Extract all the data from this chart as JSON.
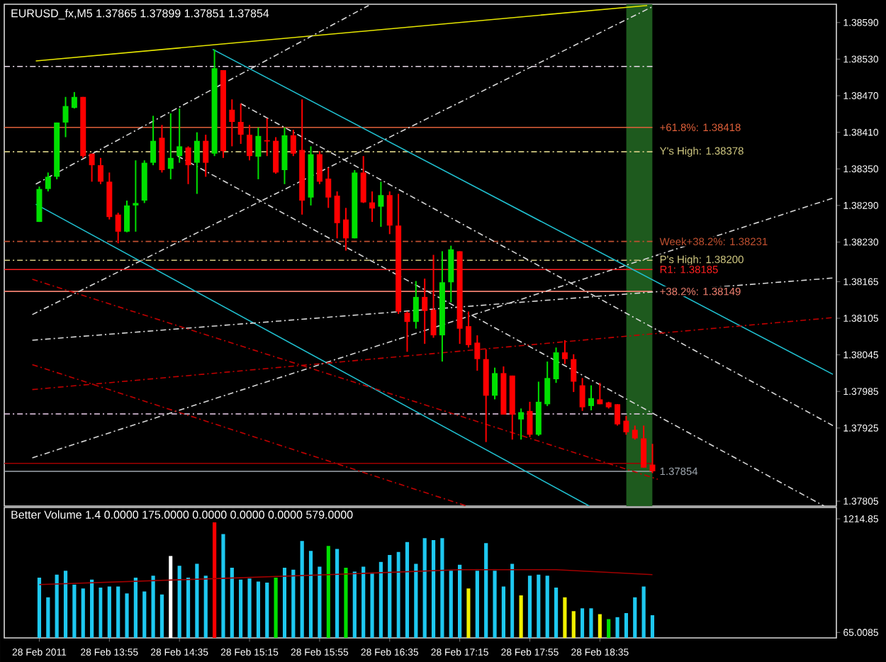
{
  "chart_data": [
    {
      "type": "candlestick",
      "title": "EURUSD_fx,M5  1.37865 1.37899 1.37851 1.37854",
      "x": [
        "2011-02-28T13:15",
        "2011-02-28T13:20",
        "2011-02-28T13:25",
        "2011-02-28T13:30",
        "2011-02-28T13:35",
        "2011-02-28T13:40",
        "2011-02-28T13:45",
        "2011-02-28T13:50",
        "2011-02-28T13:55",
        "2011-02-28T14:00",
        "2011-02-28T14:05",
        "2011-02-28T14:10",
        "2011-02-28T14:15",
        "2011-02-28T14:20",
        "2011-02-28T14:25",
        "2011-02-28T14:30",
        "2011-02-28T14:35",
        "2011-02-28T14:40",
        "2011-02-28T14:45",
        "2011-02-28T14:50",
        "2011-02-28T14:55",
        "2011-02-28T15:00",
        "2011-02-28T15:05",
        "2011-02-28T15:10",
        "2011-02-28T15:15",
        "2011-02-28T15:20",
        "2011-02-28T15:25",
        "2011-02-28T15:30",
        "2011-02-28T15:35",
        "2011-02-28T15:40",
        "2011-02-28T15:45",
        "2011-02-28T15:50",
        "2011-02-28T15:55",
        "2011-02-28T16:00",
        "2011-02-28T16:05",
        "2011-02-28T16:10",
        "2011-02-28T16:15",
        "2011-02-28T16:20",
        "2011-02-28T16:25",
        "2011-02-28T16:30",
        "2011-02-28T16:35",
        "2011-02-28T16:40",
        "2011-02-28T16:45",
        "2011-02-28T16:50",
        "2011-02-28T16:55",
        "2011-02-28T17:00",
        "2011-02-28T17:05",
        "2011-02-28T17:10",
        "2011-02-28T17:15",
        "2011-02-28T17:20",
        "2011-02-28T17:25",
        "2011-02-28T17:30",
        "2011-02-28T17:35",
        "2011-02-28T17:40",
        "2011-02-28T17:45",
        "2011-02-28T17:50",
        "2011-02-28T17:55",
        "2011-02-28T18:00",
        "2011-02-28T18:05",
        "2011-02-28T18:10",
        "2011-02-28T18:15",
        "2011-02-28T18:20",
        "2011-02-28T18:25",
        "2011-02-28T18:30",
        "2011-02-28T18:35",
        "2011-02-28T18:40",
        "2011-02-28T18:45",
        "2011-02-28T18:50",
        "2011-02-28T18:55",
        "2011-02-28T19:00",
        "2011-02-28T19:05"
      ],
      "ohlc": [
        [
          1.38263,
          1.38321,
          1.38263,
          1.38317
        ],
        [
          1.38317,
          1.38344,
          1.38313,
          1.38337
        ],
        [
          1.38337,
          1.38426,
          1.38333,
          1.38426
        ],
        [
          1.38426,
          1.38468,
          1.38402,
          1.38453
        ],
        [
          1.3845,
          1.38476,
          1.38449,
          1.38468
        ],
        [
          1.38468,
          1.38468,
          1.38368,
          1.38371
        ],
        [
          1.38375,
          1.38375,
          1.38329,
          1.38356
        ],
        [
          1.38356,
          1.38368,
          1.38325,
          1.38329
        ],
        [
          1.38329,
          1.38344,
          1.38267,
          1.38271
        ],
        [
          1.38275,
          1.38278,
          1.38228,
          1.38247
        ],
        [
          1.38247,
          1.38298,
          1.38246,
          1.3829
        ],
        [
          1.3829,
          1.38364,
          1.38247,
          1.38294
        ],
        [
          1.38298,
          1.38364,
          1.38294,
          1.3836
        ],
        [
          1.3836,
          1.38437,
          1.38356,
          1.38396
        ],
        [
          1.38401,
          1.38422,
          1.38344,
          1.38348
        ],
        [
          1.3835,
          1.38441,
          1.38333,
          1.38368
        ],
        [
          1.38371,
          1.38449,
          1.3836,
          1.38387
        ],
        [
          1.38385,
          1.38387,
          1.38325,
          1.38356
        ],
        [
          1.3836,
          1.3841,
          1.38309,
          1.38396
        ],
        [
          1.38396,
          1.38406,
          1.38337,
          1.3836
        ],
        [
          1.38375,
          1.38546,
          1.38371,
          1.38515
        ],
        [
          1.38512,
          1.38512,
          1.38368,
          1.38379
        ],
        [
          1.38447,
          1.38464,
          1.38387,
          1.38427
        ],
        [
          1.38427,
          1.38457,
          1.38391,
          1.38406
        ],
        [
          1.38406,
          1.38422,
          1.38364,
          1.38371
        ],
        [
          1.3837,
          1.38418,
          1.38333,
          1.38404
        ],
        [
          1.38397,
          1.38433,
          1.38371,
          1.38395
        ],
        [
          1.38396,
          1.38402,
          1.38342,
          1.38344
        ],
        [
          1.38348,
          1.38418,
          1.38325,
          1.38405
        ],
        [
          1.38405,
          1.38414,
          1.38371,
          1.38375
        ],
        [
          1.38381,
          1.38464,
          1.38275,
          1.38298
        ],
        [
          1.38303,
          1.38387,
          1.3829,
          1.38374
        ],
        [
          1.38374,
          1.38379,
          1.38325,
          1.38329
        ],
        [
          1.38334,
          1.38352,
          1.38286,
          1.38303
        ],
        [
          1.38306,
          1.38313,
          1.38236,
          1.38261
        ],
        [
          1.38267,
          1.38286,
          1.38216,
          1.38236
        ],
        [
          1.38236,
          1.38348,
          1.38236,
          1.38344
        ],
        [
          1.38344,
          1.38371,
          1.38294,
          1.38295
        ],
        [
          1.38295,
          1.38313,
          1.38263,
          1.38285
        ],
        [
          1.38288,
          1.38329,
          1.38255,
          1.38307
        ],
        [
          1.38307,
          1.38313,
          1.38243,
          1.38257
        ],
        [
          1.38257,
          1.38309,
          1.38112,
          1.38116
        ],
        [
          1.38114,
          1.38116,
          1.3805,
          1.38099
        ],
        [
          1.38099,
          1.38166,
          1.38088,
          1.3814
        ],
        [
          1.3814,
          1.3817,
          1.38063,
          1.38117
        ],
        [
          1.38119,
          1.38209,
          1.38073,
          1.38077
        ],
        [
          1.38077,
          1.38215,
          1.38034,
          1.38164
        ],
        [
          1.38164,
          1.38224,
          1.38131,
          1.38218
        ],
        [
          1.38215,
          1.38215,
          1.38063,
          1.38088
        ],
        [
          1.38092,
          1.38116,
          1.38057,
          1.38061
        ],
        [
          1.38065,
          1.38077,
          1.38019,
          1.38038
        ],
        [
          1.38038,
          1.38054,
          1.37902,
          1.37978
        ],
        [
          1.37978,
          1.38024,
          1.37972,
          1.38015
        ],
        [
          1.38015,
          1.38026,
          1.37947,
          1.37947
        ],
        [
          1.38011,
          1.38011,
          1.37906,
          1.37947
        ],
        [
          1.37939,
          1.37957,
          1.37906,
          1.37951
        ],
        [
          1.37953,
          1.37968,
          1.3791,
          1.37914
        ],
        [
          1.37914,
          1.38001,
          1.37912,
          1.37968
        ],
        [
          1.37964,
          1.38034,
          1.37961,
          1.38007
        ],
        [
          1.38005,
          1.38057,
          1.37999,
          1.38049
        ],
        [
          1.38049,
          1.38069,
          1.3803,
          1.38038
        ],
        [
          1.38038,
          1.38046,
          1.37984,
          1.38001
        ],
        [
          1.37995,
          1.38007,
          1.37953,
          1.37959
        ],
        [
          1.37961,
          1.37995,
          1.37954,
          1.37974
        ],
        [
          1.37972,
          1.37999,
          1.37964,
          1.37964
        ],
        [
          1.37967,
          1.37968,
          1.37957,
          1.37959
        ],
        [
          1.37964,
          1.37964,
          1.37929,
          1.37931
        ],
        [
          1.37937,
          1.37945,
          1.37914,
          1.37918
        ],
        [
          1.37922,
          1.37929,
          1.37906,
          1.37908
        ],
        [
          1.37908,
          1.37929,
          1.3786,
          1.3786
        ],
        [
          1.37865,
          1.37899,
          1.37851,
          1.37854
        ]
      ],
      "xlim": [
        "2011-02-28T12:55",
        "2011-02-28T20:50"
      ],
      "ylim": [
        1.37797,
        1.3862
      ],
      "yticks": [
        {
          "value": 1.3859,
          "label": "1.38590"
        },
        {
          "value": 1.3853,
          "label": "1.38530"
        },
        {
          "value": 1.3847,
          "label": "1.38470"
        },
        {
          "value": 1.3841,
          "label": "1.38410"
        },
        {
          "value": 1.3835,
          "label": "1.38350"
        },
        {
          "value": 1.3829,
          "label": "1.38290"
        },
        {
          "value": 1.3823,
          "label": "1.38230"
        },
        1.38165,
        1.38105,
        1.38045,
        1.37985,
        1.37925,
        1.37805
      ],
      "tick_labels": "y",
      "bands": [
        {
          "axis": "x",
          "from": "2011-02-28T18:50",
          "to": "2011-02-28T19:05",
          "color": "#1e5a1e"
        }
      ],
      "ref_lines": [
        {
          "axis": "y",
          "value": 1.38518,
          "color": "#e8d8e8",
          "line_style": "dashed"
        },
        {
          "axis": "y",
          "value": 1.38418,
          "label": "+61.8%: 1.38418",
          "color": "#e0603a"
        },
        {
          "axis": "y",
          "value": 1.38378,
          "label": "Y's High: 1.38378",
          "color": "#d0c880",
          "line_style": "dashed"
        },
        {
          "axis": "y",
          "value": 1.38231,
          "label": "Week+38.2%: 1.38231",
          "color": "#c05030",
          "line_style": "dashed"
        },
        {
          "axis": "y",
          "value": 1.382,
          "label": "P's High: 1.38200",
          "color": "#d0c880",
          "line_style": "dashed"
        },
        {
          "axis": "y",
          "value": 1.38185,
          "label": "R1: 1.38185",
          "color": "#ff2020"
        },
        {
          "axis": "y",
          "value": 1.38149,
          "label": "+38.2%: 1.38149",
          "color": "#f08070"
        },
        {
          "axis": "y",
          "value": 1.37948,
          "color": "#f0d0f0",
          "line_style": "dashed"
        },
        {
          "axis": "y",
          "value": 1.37867,
          "color": "#a00000"
        },
        {
          "axis": "y",
          "value": 1.37854,
          "label": "1.37854",
          "color": "#a0a8b0"
        }
      ],
      "series": [
        {
          "type": "line",
          "x": [
            "2011-02-28T13:13",
            "2011-02-28T19:02"
          ],
          "values": [
            1.38527,
            1.38618
          ],
          "color": "#e6e600",
          "line_style": "solid"
        },
        {
          "type": "line",
          "x": [
            "2011-02-28T14:54",
            "2011-02-28T20:48"
          ],
          "values": [
            1.38546,
            1.38013
          ],
          "color": "#20c0d0",
          "line_style": "solid"
        },
        {
          "type": "line",
          "x": [
            "2011-02-28T13:13",
            "2011-02-28T18:29"
          ],
          "values": [
            1.38292,
            1.37797
          ],
          "color": "#20c0d0",
          "line_style": "solid"
        },
        {
          "type": "line",
          "x": [
            "2011-02-28T13:13",
            "2011-02-28T16:23"
          ],
          "values": [
            1.38325,
            1.38618
          ],
          "color": "#d8d8d8",
          "line_style": "dashed"
        },
        {
          "type": "line",
          "x": [
            "2011-02-28T13:11",
            "2011-02-28T19:05"
          ],
          "values": [
            1.38111,
            1.38616
          ],
          "color": "#d8d8d8",
          "line_style": "dashed"
        },
        {
          "type": "line",
          "x": [
            "2011-02-28T13:11",
            "2011-02-28T20:48"
          ],
          "values": [
            1.37876,
            1.38302
          ],
          "color": "#d8d8d8",
          "line_style": "dashed"
        },
        {
          "type": "line",
          "x": [
            "2011-02-28T13:11",
            "2011-02-28T20:48"
          ],
          "values": [
            1.38069,
            1.38171
          ],
          "color": "#d8d8d8",
          "line_style": "dashed"
        },
        {
          "type": "line",
          "x": [
            "2011-02-28T14:34",
            "2011-02-28T20:43"
          ],
          "values": [
            1.38371,
            1.37797
          ],
          "color": "#d8d8d8",
          "line_style": "dashed"
        },
        {
          "type": "line",
          "x": [
            "2011-02-28T15:10",
            "2011-02-28T20:48"
          ],
          "values": [
            1.38457,
            1.37929
          ],
          "color": "#d8d8d8",
          "line_style": "dashed"
        },
        {
          "type": "line",
          "x": [
            "2011-02-28T13:11",
            "2011-02-28T19:08"
          ],
          "values": [
            1.38169,
            1.37841
          ],
          "color": "#c00000",
          "line_style": "dashed"
        },
        {
          "type": "line",
          "x": [
            "2011-02-28T13:11",
            "2011-02-28T17:19"
          ],
          "values": [
            1.38029,
            1.37797
          ],
          "color": "#c00000",
          "line_style": "dashed"
        },
        {
          "type": "line",
          "x": [
            "2011-02-28T13:11",
            "2011-02-28T20:48"
          ],
          "values": [
            1.37988,
            1.38106
          ],
          "color": "#c00000",
          "line_style": "dashed"
        }
      ]
    },
    {
      "type": "bar",
      "title": "Better Volume 1.4 0.0000 175.0000 0.0000 0.0000 0.0000 579.0000",
      "x": [
        "2011-02-28T13:15",
        "2011-02-28T13:20",
        "2011-02-28T13:25",
        "2011-02-28T13:30",
        "2011-02-28T13:35",
        "2011-02-28T13:40",
        "2011-02-28T13:45",
        "2011-02-28T13:50",
        "2011-02-28T13:55",
        "2011-02-28T14:00",
        "2011-02-28T14:05",
        "2011-02-28T14:10",
        "2011-02-28T14:15",
        "2011-02-28T14:20",
        "2011-02-28T14:25",
        "2011-02-28T14:30",
        "2011-02-28T14:35",
        "2011-02-28T14:40",
        "2011-02-28T14:45",
        "2011-02-28T14:50",
        "2011-02-28T14:55",
        "2011-02-28T15:00",
        "2011-02-28T15:05",
        "2011-02-28T15:10",
        "2011-02-28T15:15",
        "2011-02-28T15:20",
        "2011-02-28T15:25",
        "2011-02-28T15:30",
        "2011-02-28T15:35",
        "2011-02-28T15:40",
        "2011-02-28T15:45",
        "2011-02-28T15:50",
        "2011-02-28T15:55",
        "2011-02-28T16:00",
        "2011-02-28T16:05",
        "2011-02-28T16:10",
        "2011-02-28T16:15",
        "2011-02-28T16:20",
        "2011-02-28T16:25",
        "2011-02-28T16:30",
        "2011-02-28T16:35",
        "2011-02-28T16:40",
        "2011-02-28T16:45",
        "2011-02-28T16:50",
        "2011-02-28T16:55",
        "2011-02-28T17:00",
        "2011-02-28T17:05",
        "2011-02-28T17:10",
        "2011-02-28T17:15",
        "2011-02-28T17:20",
        "2011-02-28T17:25",
        "2011-02-28T17:30",
        "2011-02-28T17:35",
        "2011-02-28T17:40",
        "2011-02-28T17:45",
        "2011-02-28T17:50",
        "2011-02-28T17:55",
        "2011-02-28T18:00",
        "2011-02-28T18:05",
        "2011-02-28T18:10",
        "2011-02-28T18:15",
        "2011-02-28T18:20",
        "2011-02-28T18:25",
        "2011-02-28T18:30",
        "2011-02-28T18:35",
        "2011-02-28T18:40",
        "2011-02-28T18:45",
        "2011-02-28T18:50",
        "2011-02-28T18:55",
        "2011-02-28T19:00",
        "2011-02-28T19:05"
      ],
      "xlim": [
        "2011-02-28T12:55",
        "2011-02-28T20:50"
      ],
      "ylim": [
        10,
        1330
      ],
      "yticks": [
        1214.85,
        65.0085
      ],
      "xticks": [
        {
          "value": "2011-02-28T13:15",
          "label": "28 Feb 2011"
        },
        {
          "value": "2011-02-28T13:55",
          "label": "28 Feb 13:55"
        },
        {
          "value": "2011-02-28T14:35",
          "label": "28 Feb 14:35"
        },
        {
          "value": "2011-02-28T15:15",
          "label": "28 Feb 15:15"
        },
        {
          "value": "2011-02-28T15:55",
          "label": "28 Feb 15:55"
        },
        {
          "value": "2011-02-28T16:35",
          "label": "28 Feb 16:35"
        },
        {
          "value": "2011-02-28T17:15",
          "label": "28 Feb 17:15"
        },
        {
          "value": "2011-02-28T17:55",
          "label": "28 Feb 17:55"
        },
        {
          "value": "2011-02-28T18:35",
          "label": "28 Feb 18:35"
        }
      ],
      "series": [
        {
          "type": "bar",
          "values": [
            620,
            420,
            650,
            690,
            550,
            510,
            600,
            520,
            530,
            530,
            460,
            620,
            480,
            640,
            450,
            840,
            740,
            620,
            760,
            640,
            1180,
            1060,
            720,
            600,
            610,
            580,
            570,
            620,
            720,
            700,
            990,
            890,
            730,
            940,
            910,
            720,
            680,
            730,
            660,
            780,
            850,
            880,
            980,
            760,
            1020,
            1000,
            1020,
            690,
            750,
            510,
            690,
            970,
            690,
            530,
            760,
            440,
            640,
            650,
            640,
            520,
            420,
            280,
            310,
            310,
            250,
            200,
            220,
            260,
            420,
            530,
            240
          ],
          "colors": [
            "#1ec8f0",
            "#1ec8f0",
            "#1ec8f0",
            "#1ec8f0",
            "#1ec8f0",
            "#1ec8f0",
            "#1ec8f0",
            "#1ec8f0",
            "#1ec8f0",
            "#1ec8f0",
            "#1ec8f0",
            "#1ec8f0",
            "#1ec8f0",
            "#1ec8f0",
            "#1ec8f0",
            "#ffffff",
            "#1ec8f0",
            "#1ec8f0",
            "#1ec8f0",
            "#1ec8f0",
            "#ff0000",
            "#1ec8f0",
            "#1ec8f0",
            "#1ec8f0",
            "#1ec8f0",
            "#1ec8f0",
            "#1ec8f0",
            "#00e000",
            "#1ec8f0",
            "#1ec8f0",
            "#1ec8f0",
            "#1ec8f0",
            "#1ec8f0",
            "#00e000",
            "#1ec8f0",
            "#00e000",
            "#1ec8f0",
            "#1ec8f0",
            "#1ec8f0",
            "#1ec8f0",
            "#1ec8f0",
            "#1ec8f0",
            "#1ec8f0",
            "#1ec8f0",
            "#1ec8f0",
            "#1ec8f0",
            "#1ec8f0",
            "#1ec8f0",
            "#1ec8f0",
            "#f0f000",
            "#1ec8f0",
            "#1ec8f0",
            "#1ec8f0",
            "#1ec8f0",
            "#1ec8f0",
            "#f0f000",
            "#1ec8f0",
            "#1ec8f0",
            "#1ec8f0",
            "#1ec8f0",
            "#f0f000",
            "#f0f000",
            "#1ec8f0",
            "#1ec8f0",
            "#f0f000",
            "#00e000",
            "#1ec8f0",
            "#1ec8f0",
            "#1ec8f0",
            "#1ec8f0",
            "#1ec8f0"
          ]
        },
        {
          "type": "line",
          "x": [
            "2011-02-28T13:15",
            "2011-02-28T14:55",
            "2011-02-28T16:00",
            "2011-02-28T17:15",
            "2011-02-28T18:10",
            "2011-02-28T19:05"
          ],
          "values": [
            550,
            610,
            650,
            700,
            700,
            650
          ],
          "color": "#a00000"
        }
      ]
    }
  ]
}
